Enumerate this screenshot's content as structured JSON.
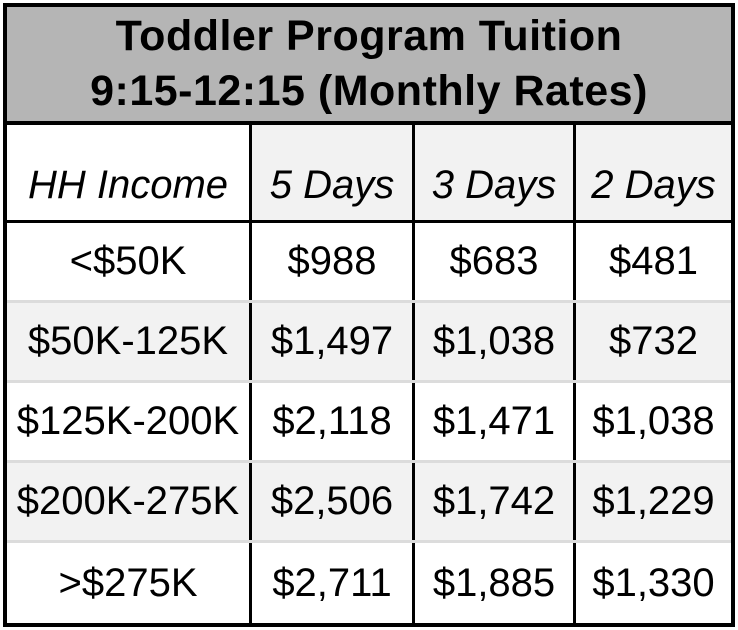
{
  "title": {
    "line1": "Toddler Program Tuition",
    "line2": "9:15-12:15 (Monthly Rates)"
  },
  "table": {
    "columns": [
      "HH Income",
      "5 Days",
      "3 Days",
      "2 Days"
    ],
    "rows": [
      [
        "<$50K",
        "$988",
        "$683",
        "$481"
      ],
      [
        "$50K-125K",
        "$1,497",
        "$1,038",
        "$732"
      ],
      [
        "$125K-200K",
        "$2,118",
        "$1,471",
        "$1,038"
      ],
      [
        "$200K-275K",
        "$2,506",
        "$1,742",
        "$1,229"
      ],
      [
        ">$275K",
        "$2,711",
        "$1,885",
        "$1,330"
      ]
    ]
  },
  "colors": {
    "title_background": "#b5b5b5",
    "outer_border": "#000000",
    "column_divider": "#000000",
    "alt_row_background": "#f2f2f2",
    "row_separator": "#dcdcdc",
    "text": "#000000"
  },
  "chart_data": {
    "type": "table",
    "title": "Toddler Program Tuition 9:15-12:15 (Monthly Rates)",
    "columns": [
      "HH Income",
      "5 Days",
      "3 Days",
      "2 Days"
    ],
    "rows": [
      [
        "<$50K",
        "$988",
        "$683",
        "$481"
      ],
      [
        "$50K-125K",
        "$1,497",
        "$1,038",
        "$732"
      ],
      [
        "$125K-200K",
        "$2,118",
        "$1,471",
        "$1,038"
      ],
      [
        "$200K-275K",
        "$2,506",
        "$1,742",
        "$1,229"
      ],
      [
        ">$275K",
        "$2,711",
        "$1,885",
        "$1,330"
      ]
    ]
  }
}
